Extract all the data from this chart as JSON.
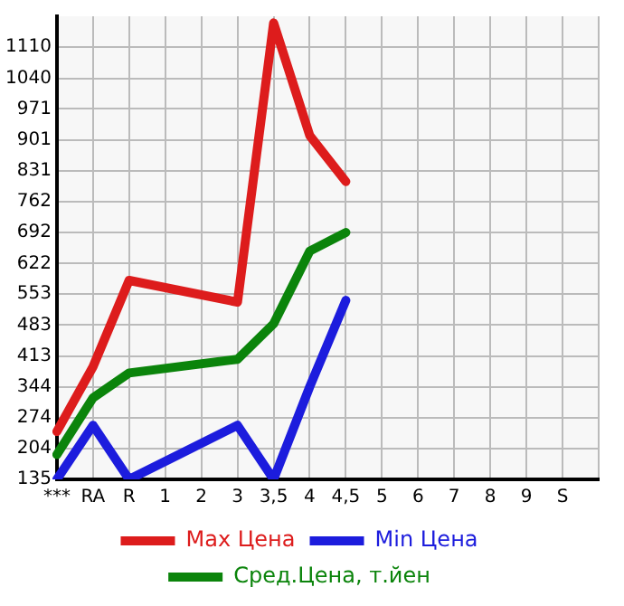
{
  "chart_data": {
    "type": "line",
    "categories": [
      "***",
      "RA",
      "R",
      "1",
      "2",
      "3",
      "3,5",
      "4",
      "4,5",
      "5",
      "6",
      "7",
      "8",
      "9",
      "S",
      null
    ],
    "series": [
      {
        "name": "Max Цена",
        "color": "#dd1c1c",
        "values": [
          243,
          389,
          584,
          null,
          null,
          535,
          1165,
          911,
          807,
          null,
          null,
          null,
          null,
          null,
          null,
          null
        ]
      },
      {
        "name": "Min Цена",
        "color": "#1c1cdd",
        "values": [
          135,
          257,
          135,
          null,
          null,
          257,
          135,
          344,
          539,
          null,
          null,
          null,
          null,
          null,
          null,
          null
        ]
      },
      {
        "name": "Сред.Цена, т.йен",
        "color": "#0b840b",
        "values": [
          191,
          319,
          375,
          null,
          null,
          406,
          486,
          650,
          692,
          null,
          null,
          null,
          null,
          null,
          null,
          null
        ]
      }
    ],
    "ylim": [
      135,
      1180
    ],
    "yticks": [
      135,
      204,
      274,
      344,
      413,
      483,
      553,
      622,
      692,
      762,
      831,
      901,
      971,
      1040,
      1110
    ],
    "grid": true,
    "legend": "bottom",
    "marker": "none",
    "line_style": "solid"
  }
}
